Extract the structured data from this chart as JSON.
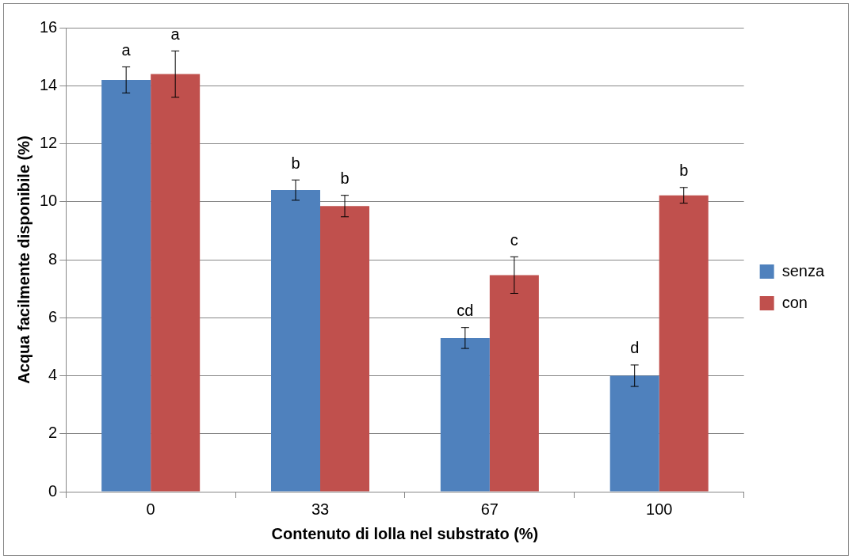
{
  "chart_data": {
    "type": "bar",
    "xlabel": "Contenuto di lolla nel substrato (%)",
    "ylabel": "Acqua facilmente disponibile (%)",
    "categories": [
      "0",
      "33",
      "67",
      "100"
    ],
    "series": [
      {
        "name": "senza",
        "color": "#4f81bd",
        "values": [
          14.2,
          10.4,
          5.3,
          4.0
        ],
        "errors": [
          0.45,
          0.35,
          0.36,
          0.37
        ],
        "value_labels": [
          "a",
          "b",
          "cd",
          "d"
        ]
      },
      {
        "name": "con",
        "color": "#c0504d",
        "values": [
          14.4,
          9.85,
          7.47,
          10.22
        ],
        "errors": [
          0.8,
          0.37,
          0.63,
          0.27
        ],
        "value_labels": [
          "a",
          "b",
          "c",
          "b"
        ]
      }
    ],
    "ylim": [
      0,
      16
    ],
    "yticks": [
      0,
      2,
      4,
      6,
      8,
      10,
      12,
      14,
      16
    ],
    "grid": "y",
    "legend": "right"
  }
}
